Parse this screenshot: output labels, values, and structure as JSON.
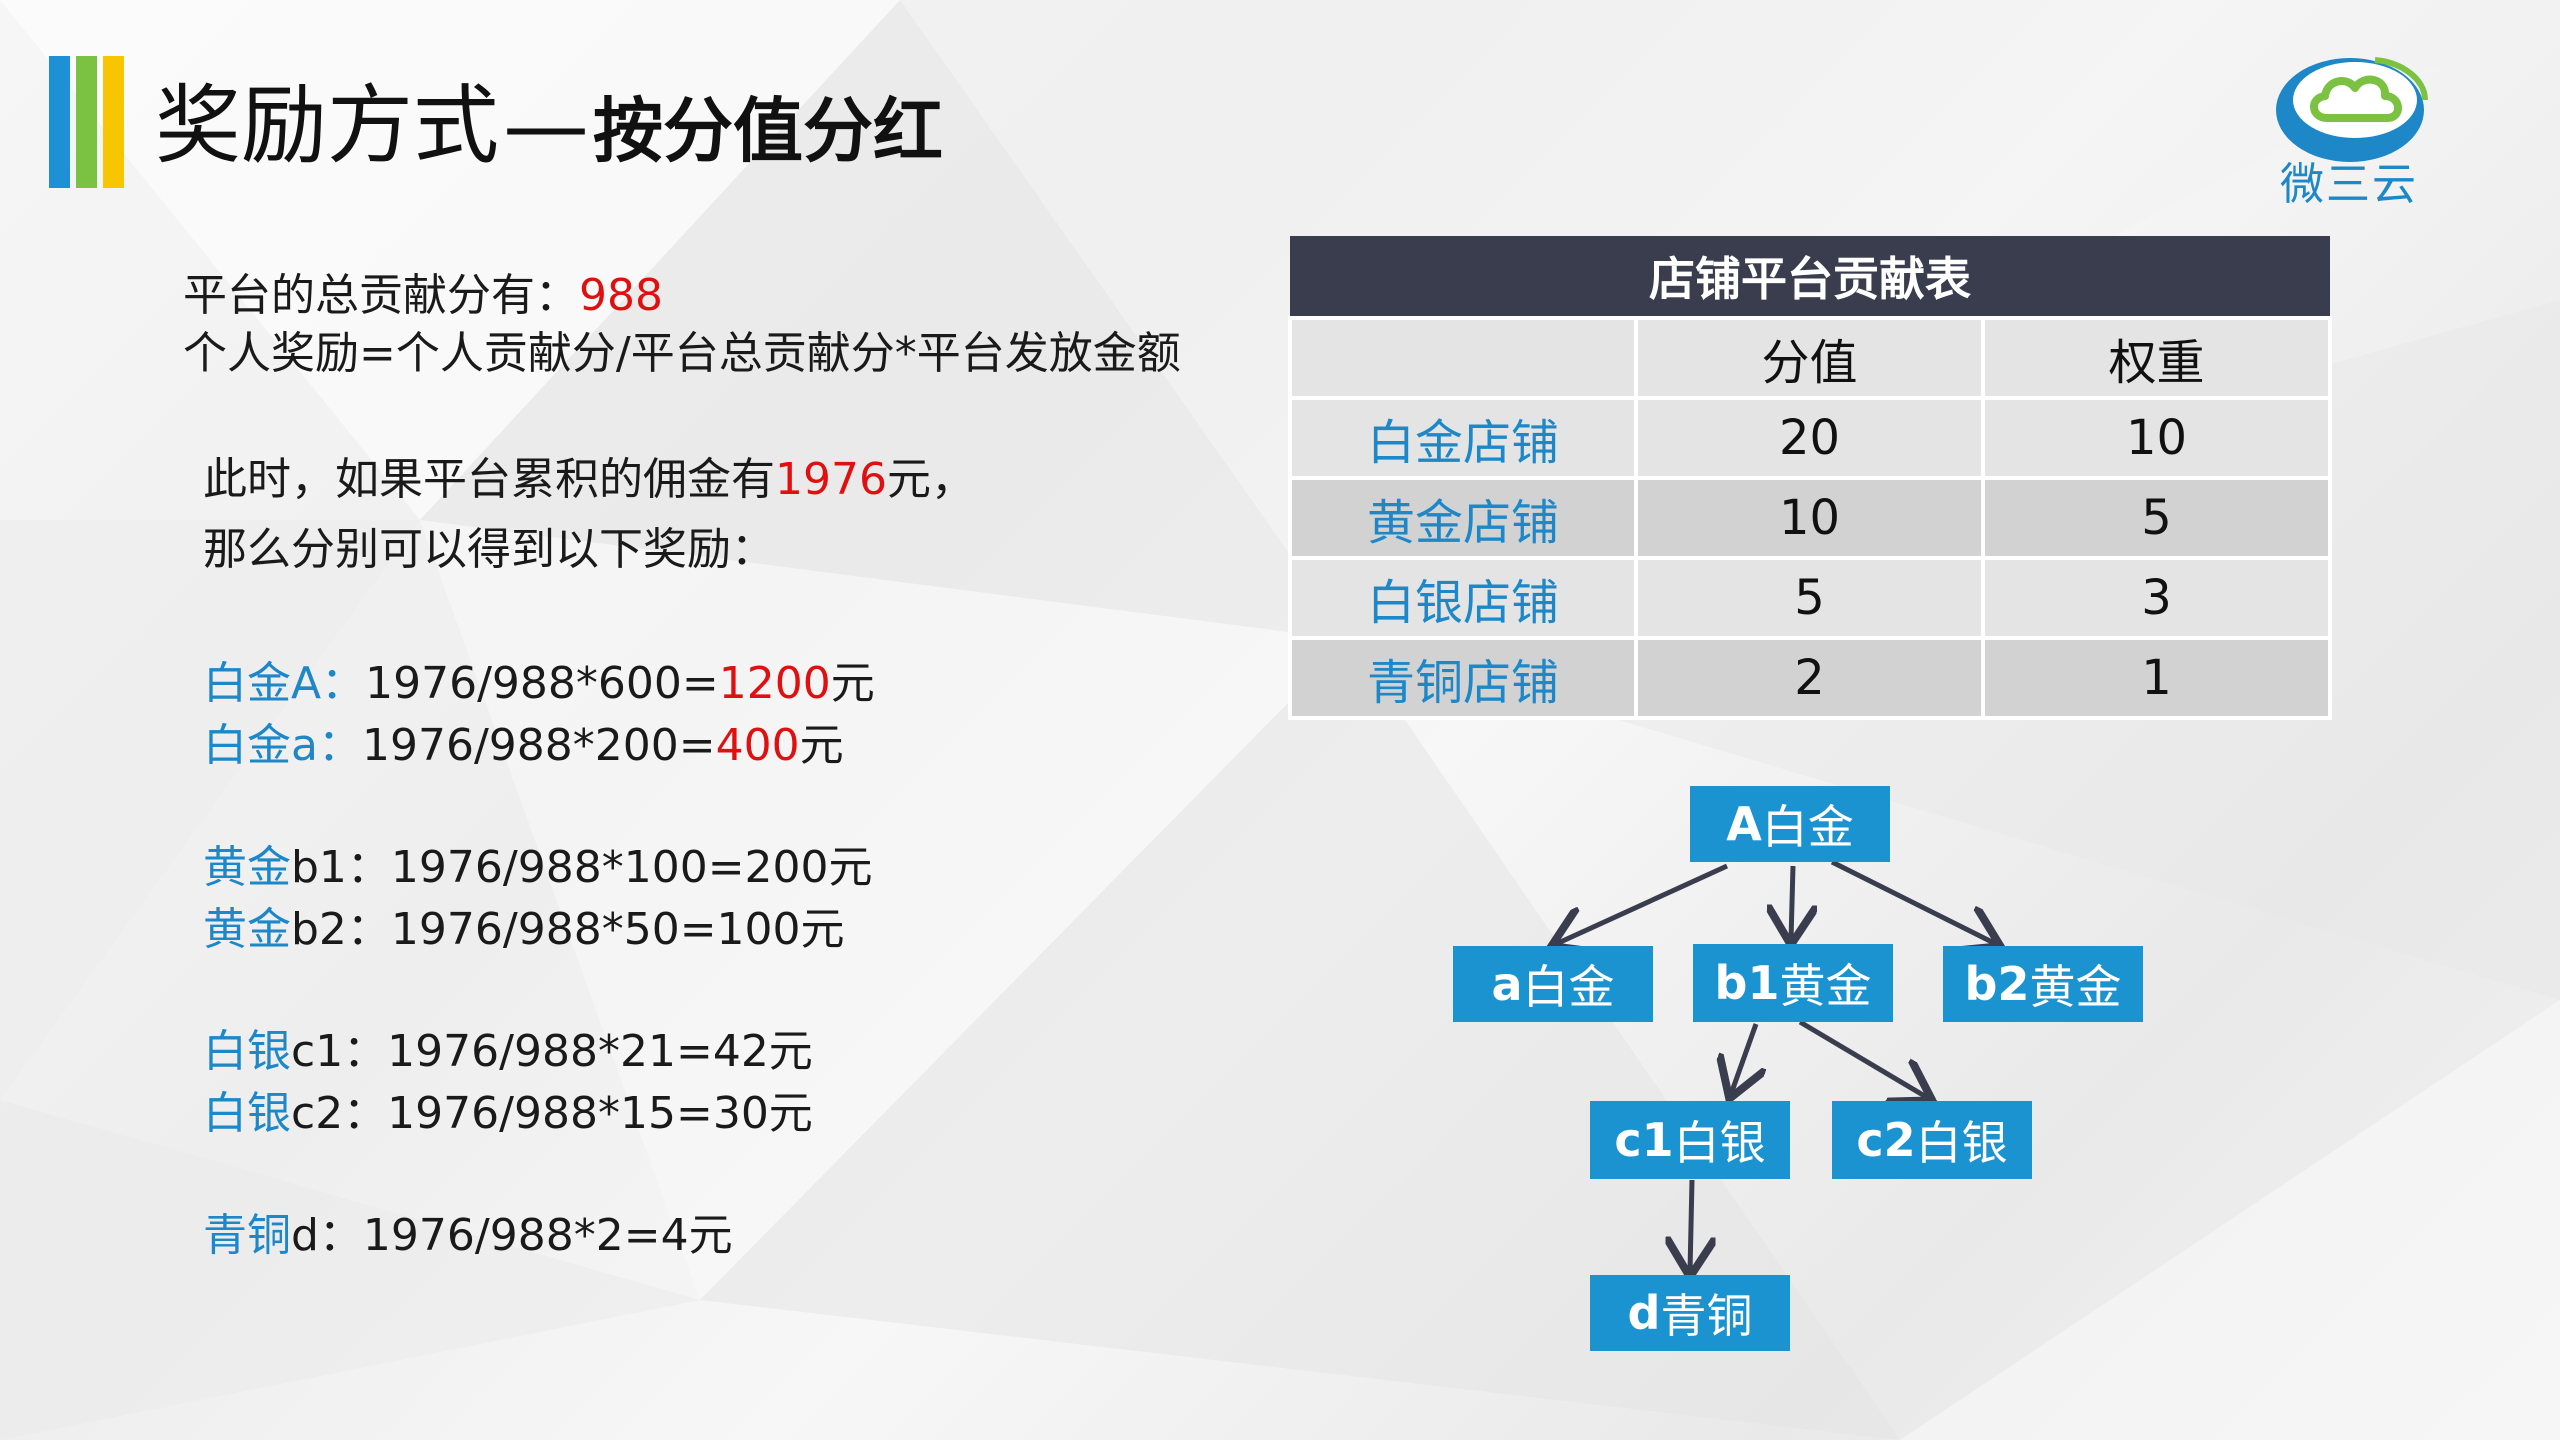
{
  "colors": {
    "bar1": "#1e90d6",
    "bar2": "#7cc242",
    "bar3": "#f7c600",
    "accent_blue": "#1d87c8",
    "highlight_red": "#e01010",
    "table_header": "#3a3d4e",
    "node_blue": "#1b93d1"
  },
  "title": {
    "main": "奖励方式",
    "dash": "—",
    "sub": "按分值分红"
  },
  "logo": {
    "icon": "cloud-icon",
    "text": "微三云"
  },
  "intro": {
    "total_label": "平台的总贡献分有：",
    "total_value": "988",
    "formula": "个人奖励=个人贡献分/平台总贡献分*平台发放金额"
  },
  "scenario": {
    "line1_prefix": "此时，如果平台累积的佣金有",
    "line1_amount": "1976",
    "line1_suffix": "元，",
    "line2": "那么分别可以得到以下奖励："
  },
  "rewards": [
    {
      "label": "白金A：",
      "calc": "1976/988*600=",
      "result": "1200",
      "unit": "元"
    },
    {
      "label": "白金a：",
      "calc": "1976/988*200=",
      "result": "400",
      "unit": "元"
    },
    {
      "label": "黄金",
      "calc": "b1：1976/988*100=200元"
    },
    {
      "label": "黄金",
      "calc": "b2：1976/988*50=100元"
    },
    {
      "label": "白银",
      "calc": "c1：1976/988*21=42元"
    },
    {
      "label": "白银",
      "calc": "c2：1976/988*15=30元"
    },
    {
      "label": "青铜",
      "calc": "d：1976/988*2=4元"
    }
  ],
  "table": {
    "title": "店铺平台贡献表",
    "columns": [
      "",
      "分值",
      "权重"
    ],
    "rows": [
      [
        "白金店铺",
        "20",
        "10"
      ],
      [
        "黄金店铺",
        "10",
        "5"
      ],
      [
        "白银店铺",
        "5",
        "3"
      ],
      [
        "青铜店铺",
        "2",
        "1"
      ]
    ]
  },
  "tree": {
    "nodes": {
      "A": {
        "code": "A",
        "name": "白金"
      },
      "a": {
        "code": "a",
        "name": "白金"
      },
      "b1": {
        "code": "b1",
        "name": "黄金"
      },
      "b2": {
        "code": "b2",
        "name": "黄金"
      },
      "c1": {
        "code": "c1",
        "name": "白银"
      },
      "c2": {
        "code": "c2",
        "name": "白银"
      },
      "d": {
        "code": "d",
        "name": "青铜"
      }
    }
  }
}
